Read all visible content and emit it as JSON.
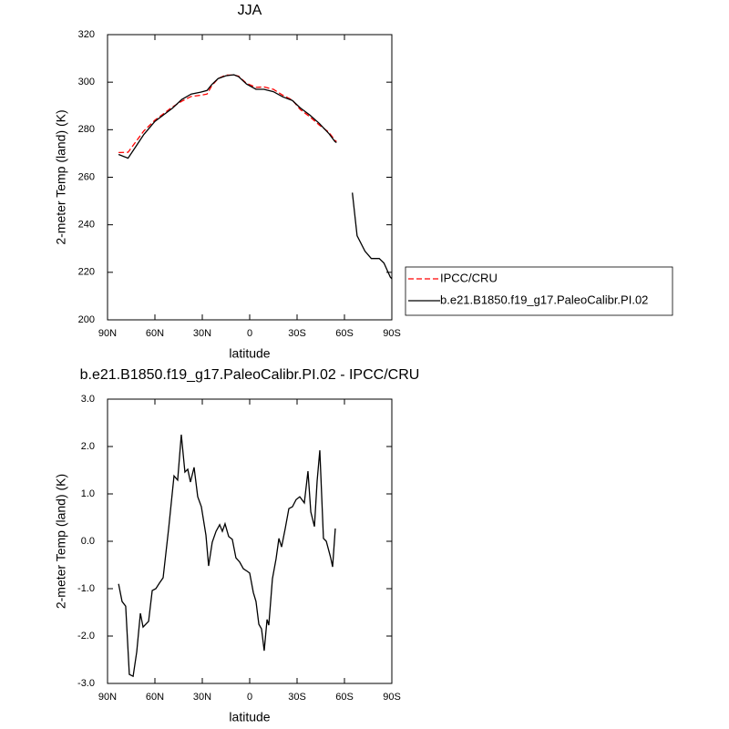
{
  "chart_data": [
    {
      "type": "line",
      "title": "JJA",
      "xlabel": "latitude",
      "ylabel": "2-meter Temp (land) (K)",
      "x": [
        83,
        77,
        72,
        67,
        60,
        54,
        49,
        43,
        37,
        31,
        27,
        24,
        20,
        15,
        10,
        7,
        2,
        -4,
        -9,
        -15,
        -21,
        -27,
        -32,
        -38,
        -44,
        -50,
        -54,
        -55,
        -60,
        -65,
        -68,
        -73,
        -77,
        -82,
        -85,
        -89,
        -90
      ],
      "series": [
        {
          "name": "IPCC/CRU",
          "color": "#ff0000",
          "dash": true,
          "values": [
            270.4,
            270.5,
            275,
            279.5,
            284,
            287,
            289.5,
            292,
            294,
            294.5,
            295,
            298.5,
            301.5,
            303,
            303,
            302.5,
            299.5,
            297.8,
            298,
            297,
            294.5,
            292.5,
            288.5,
            285.5,
            282,
            279,
            275.5,
            275,
            null,
            null,
            null,
            null,
            null,
            null,
            null,
            null,
            null
          ]
        },
        {
          "name": "b.e21.B1850.f19_g17.PaleoCalibr.PI.02",
          "color": "#000000",
          "dash": false,
          "values": [
            269.6,
            268,
            273,
            278,
            283.5,
            286.5,
            289,
            292.7,
            295,
            295.8,
            296.5,
            299,
            301.5,
            302.7,
            303.1,
            302.3,
            299.2,
            297,
            297,
            296,
            293.8,
            292.3,
            289.2,
            286.2,
            282.7,
            278.5,
            275,
            274.6,
            null,
            253.5,
            235.4,
            228.9,
            225.8,
            225.8,
            223.9,
            218,
            217.3
          ]
        }
      ],
      "xlim": [
        90,
        -90
      ],
      "xticks": [
        {
          "value": 90,
          "label": "90N"
        },
        {
          "value": 60,
          "label": "60N"
        },
        {
          "value": 30,
          "label": "30N"
        },
        0,
        {
          "value": -30,
          "label": "30S"
        },
        {
          "value": -60,
          "label": "60S"
        },
        {
          "value": -90,
          "label": "90S"
        }
      ],
      "ylim": [
        200,
        320
      ],
      "yticks": [
        200,
        220,
        240,
        260,
        280,
        300,
        320
      ],
      "legend": "right"
    },
    {
      "type": "line",
      "title": "b.e21.B1850.f19_g17.PaleoCalibr.PI.02 - IPCC/CRU",
      "xlabel": "latitude",
      "ylabel": "2-meter Temp (land) (K)",
      "x": [
        83,
        80.8,
        78.5,
        76.2,
        73.8,
        71.5,
        69.2,
        67.5,
        64,
        61.7,
        59.4,
        57.1,
        54.8,
        51.3,
        47.9,
        45.6,
        43.3,
        41,
        39.2,
        37.5,
        35.2,
        32.9,
        30.6,
        27.7,
        26,
        23.7,
        21.3,
        19,
        17.3,
        15.6,
        13.3,
        11,
        8.7,
        6.3,
        4,
        1.7,
        0,
        -2.3,
        -4,
        -5.8,
        -7.5,
        -9.2,
        -11,
        -12.1,
        -14.4,
        -16.7,
        -18.5,
        -20.2,
        -22.5,
        -24.8,
        -27.1,
        -29.4,
        -31.7,
        -34.6,
        -36.9,
        -38.7,
        -41,
        -42.7,
        -44.4,
        -46.7,
        -48.5,
        -51.3,
        -52.5,
        -54.2
      ],
      "values": [
        -0.9,
        -1.27,
        -1.37,
        -2.81,
        -2.85,
        -2.33,
        -1.52,
        -1.81,
        -1.69,
        -1.04,
        -1.0,
        -0.88,
        -0.77,
        0.27,
        1.38,
        1.29,
        2.25,
        1.46,
        1.52,
        1.25,
        1.56,
        0.94,
        0.73,
        0.13,
        -0.52,
        -0.02,
        0.21,
        0.35,
        0.21,
        0.37,
        0.1,
        0.04,
        -0.35,
        -0.44,
        -0.58,
        -0.63,
        -0.67,
        -1.08,
        -1.27,
        -1.75,
        -1.85,
        -2.31,
        -1.65,
        -1.77,
        -0.79,
        -0.37,
        0.06,
        -0.12,
        0.27,
        0.69,
        0.73,
        0.88,
        0.94,
        0.81,
        1.48,
        0.62,
        0.31,
        1.27,
        1.92,
        0.06,
        0.0,
        -0.35,
        -0.54,
        0.27
      ],
      "color": "#000000",
      "xlim": [
        90,
        -90
      ],
      "xticks": [
        {
          "value": 90,
          "label": "90N"
        },
        {
          "value": 60,
          "label": "60N"
        },
        {
          "value": 30,
          "label": "30N"
        },
        0,
        {
          "value": -30,
          "label": "30S"
        },
        {
          "value": -60,
          "label": "60S"
        },
        {
          "value": -90,
          "label": "90S"
        }
      ],
      "ylim": [
        -3,
        3
      ],
      "yticks": [
        {
          "value": -3,
          "label": "-3.0"
        },
        {
          "value": -2,
          "label": "-2.0"
        },
        {
          "value": -1,
          "label": "-1.0"
        },
        {
          "value": 0,
          "label": "0.0"
        },
        {
          "value": 1,
          "label": "1.0"
        },
        {
          "value": 2,
          "label": "2.0"
        },
        {
          "value": 3,
          "label": "3.0"
        }
      ]
    }
  ]
}
